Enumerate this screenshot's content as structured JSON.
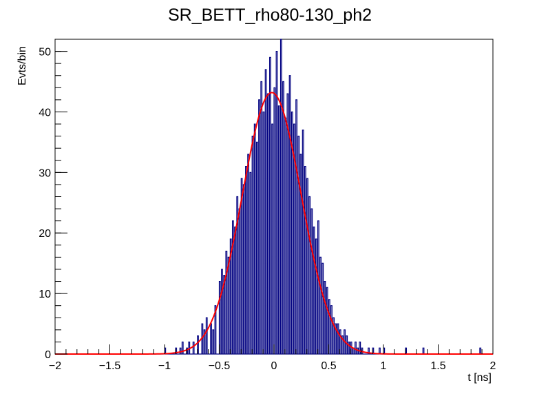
{
  "chart_data": {
    "type": "histogram",
    "title": "SR_BETT_rho80-130_ph2",
    "xlabel": "t [ns]",
    "ylabel": "Evts/bin",
    "xlim": [
      -2,
      2
    ],
    "ylim": [
      0,
      52
    ],
    "x_ticks": [
      -2,
      -1.5,
      -1,
      -0.5,
      0,
      0.5,
      1,
      1.5,
      2
    ],
    "x_tick_labels": [
      "−2",
      "−1.5",
      "−1",
      "−0.5",
      "0",
      "0.5",
      "1",
      "1.5",
      "2"
    ],
    "y_ticks": [
      0,
      10,
      20,
      30,
      40,
      50
    ],
    "y_tick_labels": [
      "0",
      "10",
      "20",
      "30",
      "40",
      "50"
    ],
    "grid": false,
    "legend": "none",
    "histogram": {
      "name": "",
      "color": "#000080",
      "bin_edges_range": [
        -2,
        2
      ],
      "bin_count": 400,
      "counts_by_x": [
        [
          -1.0,
          1
        ],
        [
          -0.9,
          1
        ],
        [
          -0.86,
          1
        ],
        [
          -0.84,
          2
        ],
        [
          -0.8,
          1
        ],
        [
          -0.78,
          2
        ],
        [
          -0.74,
          2
        ],
        [
          -0.7,
          3
        ],
        [
          -0.66,
          5
        ],
        [
          -0.64,
          4
        ],
        [
          -0.62,
          6
        ],
        [
          -0.58,
          5
        ],
        [
          -0.56,
          4
        ],
        [
          -0.54,
          8
        ],
        [
          -0.5,
          12
        ],
        [
          -0.48,
          14
        ],
        [
          -0.46,
          13
        ],
        [
          -0.44,
          17
        ],
        [
          -0.42,
          16
        ],
        [
          -0.4,
          19
        ],
        [
          -0.38,
          22
        ],
        [
          -0.36,
          21
        ],
        [
          -0.34,
          26
        ],
        [
          -0.32,
          24
        ],
        [
          -0.3,
          29
        ],
        [
          -0.28,
          28
        ],
        [
          -0.26,
          31
        ],
        [
          -0.24,
          33
        ],
        [
          -0.22,
          30
        ],
        [
          -0.2,
          36
        ],
        [
          -0.18,
          38
        ],
        [
          -0.16,
          35
        ],
        [
          -0.14,
          42
        ],
        [
          -0.12,
          45
        ],
        [
          -0.1,
          40
        ],
        [
          -0.08,
          47
        ],
        [
          -0.06,
          43
        ],
        [
          -0.04,
          49
        ],
        [
          -0.02,
          38
        ],
        [
          0.0,
          44
        ],
        [
          0.02,
          50
        ],
        [
          0.04,
          41
        ],
        [
          0.06,
          52
        ],
        [
          0.08,
          45
        ],
        [
          0.1,
          39
        ],
        [
          0.12,
          43
        ],
        [
          0.14,
          46
        ],
        [
          0.16,
          40
        ],
        [
          0.18,
          38
        ],
        [
          0.2,
          42
        ],
        [
          0.22,
          36
        ],
        [
          0.24,
          33
        ],
        [
          0.26,
          37
        ],
        [
          0.28,
          31
        ],
        [
          0.3,
          29
        ],
        [
          0.32,
          26
        ],
        [
          0.34,
          24
        ],
        [
          0.36,
          21
        ],
        [
          0.38,
          19
        ],
        [
          0.4,
          22
        ],
        [
          0.42,
          16
        ],
        [
          0.44,
          15
        ],
        [
          0.46,
          12
        ],
        [
          0.48,
          11
        ],
        [
          0.5,
          9
        ],
        [
          0.52,
          8
        ],
        [
          0.54,
          6
        ],
        [
          0.56,
          5
        ],
        [
          0.58,
          5
        ],
        [
          0.6,
          4
        ],
        [
          0.62,
          3
        ],
        [
          0.64,
          4
        ],
        [
          0.66,
          3
        ],
        [
          0.68,
          2
        ],
        [
          0.7,
          2
        ],
        [
          0.72,
          1
        ],
        [
          0.74,
          2
        ],
        [
          0.76,
          1
        ],
        [
          0.78,
          2
        ],
        [
          0.8,
          1
        ],
        [
          0.86,
          1
        ],
        [
          0.9,
          1
        ],
        [
          0.96,
          1
        ],
        [
          1.0,
          1
        ],
        [
          1.2,
          1
        ],
        [
          1.36,
          1
        ],
        [
          1.88,
          1
        ]
      ]
    },
    "fit": {
      "name": "",
      "type": "gaussian",
      "color": "#ff0000",
      "amplitude": 43.2,
      "mean": -0.02,
      "sigma": 0.27
    }
  }
}
